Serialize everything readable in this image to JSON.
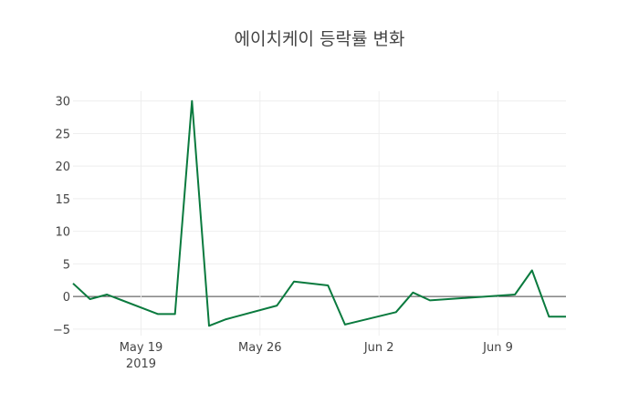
{
  "chart_data": {
    "type": "line",
    "title": "에이치케이 등락률 변화",
    "xlabel": "",
    "ylabel": "",
    "ylim": [
      -6,
      31.5
    ],
    "xlim": [
      "2019-05-15",
      "2019-06-13"
    ],
    "grid": true,
    "y_ticks": [
      -5,
      0,
      5,
      10,
      15,
      20,
      25,
      30
    ],
    "x_ticks": [
      {
        "date": "2019-05-19",
        "label": "May 19",
        "sublabel": "2019"
      },
      {
        "date": "2019-05-26",
        "label": "May 26",
        "sublabel": ""
      },
      {
        "date": "2019-06-02",
        "label": "Jun 2",
        "sublabel": ""
      },
      {
        "date": "2019-06-09",
        "label": "Jun 9",
        "sublabel": ""
      }
    ],
    "series": [
      {
        "name": "등락률",
        "color": "#0a7a3e",
        "x": [
          "2019-05-15",
          "2019-05-16",
          "2019-05-17",
          "2019-05-20",
          "2019-05-21",
          "2019-05-22",
          "2019-05-23",
          "2019-05-24",
          "2019-05-27",
          "2019-05-28",
          "2019-05-30",
          "2019-05-31",
          "2019-06-03",
          "2019-06-04",
          "2019-06-05",
          "2019-06-10",
          "2019-06-11",
          "2019-06-12",
          "2019-06-13"
        ],
        "values": [
          2.0,
          -0.4,
          0.3,
          -2.7,
          -2.7,
          30.0,
          -4.5,
          -3.5,
          -1.4,
          2.3,
          1.7,
          -4.3,
          -2.4,
          0.6,
          -0.6,
          0.3,
          4.0,
          -3.1,
          -3.1
        ]
      }
    ]
  }
}
